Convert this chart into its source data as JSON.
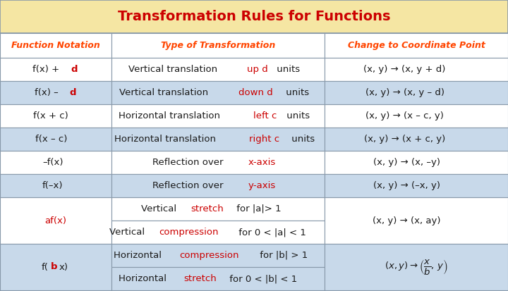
{
  "title": "Transformation Rules for Functions",
  "title_bg": "#F5E6A3",
  "title_color": "#CC0000",
  "header_color": "#FF4500",
  "col_headers": [
    "Function Notation",
    "Type of Transformation",
    "Change to Coordinate Point"
  ],
  "bg_white": "#FFFFFF",
  "bg_blue": "#C8D9EA",
  "bg_outer": "#B0C4D8",
  "border_color": "#8899AA",
  "black": "#1A1A1A",
  "red": "#CC0000",
  "figsize": [
    7.2,
    4.13
  ],
  "dpi": 100
}
